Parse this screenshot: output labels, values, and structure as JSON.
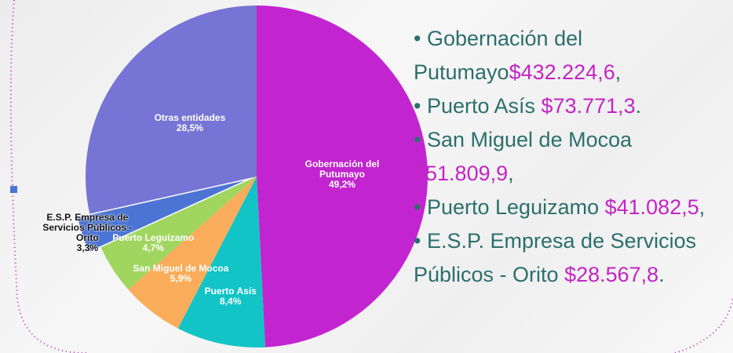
{
  "chart_data": {
    "type": "pie",
    "categories": [
      "Gobernación del Putumayo",
      "Puerto Asís",
      "San Miguel de Mocoa",
      "Puerto Leguizamo",
      "E.S.P. Empresa de Servicios Públicos - Orito",
      "Otras entidades"
    ],
    "values": [
      49.2,
      8.4,
      5.9,
      4.7,
      3.3,
      28.5
    ],
    "value_labels": [
      "49,2%",
      "8,4%",
      "5,9%",
      "4,7%",
      "3,3%",
      "28,5%"
    ],
    "colors": [
      "#c225cf",
      "#12c4c6",
      "#f9ad5a",
      "#a0d660",
      "#4b74d4",
      "#7674d4"
    ]
  },
  "list": [
    {
      "name": "Gobernación del Putumayo",
      "amount": "$432.224,6",
      "punct": ","
    },
    {
      "name": "Puerto Asís ",
      "amount": "$73.771,3",
      "punct": "."
    },
    {
      "name": "San Miguel de Mocoa ",
      "amount": "$51.809,9",
      "punct": ","
    },
    {
      "name": "Puerto Leguizamo ",
      "amount": "$41.082,5",
      "punct": ","
    },
    {
      "name": "E.S.P. Empresa de Servicios Públicos - Orito ",
      "amount": "$28.567,8",
      "punct": "."
    }
  ]
}
